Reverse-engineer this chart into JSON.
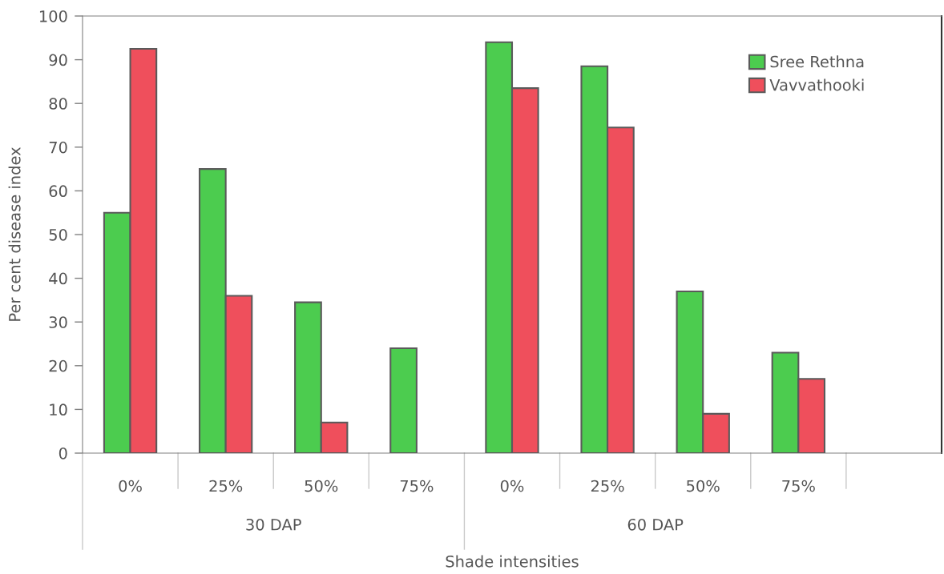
{
  "chart_data": {
    "type": "bar",
    "xlabel": "Shade intensities",
    "ylabel": "Per cent disease index",
    "categories": [
      "0%",
      "25%",
      "50%",
      "75%",
      "0%",
      "25%",
      "50%",
      "75%",
      null
    ],
    "series": [
      {
        "name": "Sree Rethna",
        "color": "#4ccc4f",
        "values": [
          55,
          65,
          34.5,
          24,
          94,
          88.5,
          37,
          23,
          null
        ]
      },
      {
        "name": "Vavvathooki",
        "color": "#ef4f5c",
        "values": [
          92.5,
          36,
          7,
          null,
          83.5,
          74.5,
          9,
          17,
          null
        ]
      }
    ],
    "ylim": [
      0,
      100
    ],
    "yticks": [
      0,
      10,
      20,
      30,
      40,
      50,
      60,
      70,
      80,
      90,
      100
    ],
    "grid": false,
    "legend": "top right",
    "annotations": [
      "30 DAP",
      "60 DAP"
    ]
  }
}
